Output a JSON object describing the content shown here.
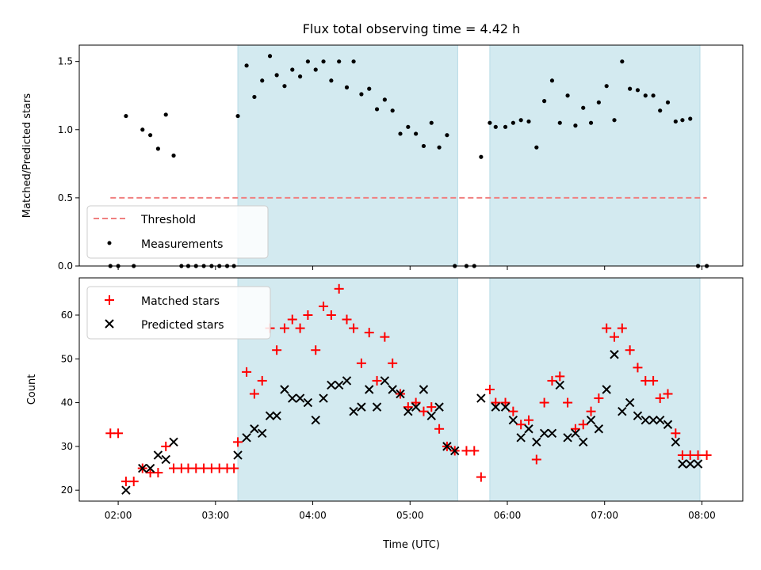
{
  "chart_data": {
    "type": "scatter",
    "title": "Flux total observing time = 4.42 h",
    "xlabel": "Time (UTC)",
    "x_ticks": [
      "02:00",
      "03:00",
      "04:00",
      "05:00",
      "06:00",
      "07:00",
      "08:00"
    ],
    "x_tick_values": [
      2,
      3,
      4,
      5,
      6,
      7,
      8
    ],
    "xlim": [
      1.6,
      8.42
    ],
    "shaded_intervals": [
      [
        3.23,
        5.49
      ],
      [
        5.82,
        7.98
      ]
    ],
    "colors": {
      "shade": "#d3eaf0",
      "threshold": "#f08080",
      "measurement": "#000000",
      "matched": "#ff0000",
      "predicted": "#000000"
    },
    "top_panel": {
      "ylabel": "Matched/Predicted stars",
      "ylim": [
        0,
        1.62
      ],
      "y_ticks": [
        "0.0",
        "0.5",
        "1.0",
        "1.5"
      ],
      "y_tick_values": [
        0,
        0.5,
        1.0,
        1.5
      ],
      "legend": {
        "position": "lower-left",
        "entries": [
          "Threshold",
          "Measurements"
        ]
      },
      "threshold": {
        "name": "Threshold",
        "value": 0.5,
        "x_range": [
          1.92,
          8.05
        ]
      },
      "measurements": {
        "name": "Measurements",
        "x": [
          1.92,
          2.0,
          2.08,
          2.16,
          2.25,
          2.33,
          2.41,
          2.49,
          2.57,
          2.65,
          2.72,
          2.8,
          2.88,
          2.96,
          3.04,
          3.12,
          3.19,
          3.23,
          3.32,
          3.4,
          3.48,
          3.56,
          3.63,
          3.71,
          3.79,
          3.87,
          3.95,
          4.03,
          4.11,
          4.19,
          4.27,
          4.35,
          4.42,
          4.5,
          4.58,
          4.66,
          4.74,
          4.82,
          4.9,
          4.98,
          5.06,
          5.14,
          5.22,
          5.3,
          5.38,
          5.46,
          5.58,
          5.66,
          5.73,
          5.82,
          5.88,
          5.98,
          6.06,
          6.14,
          6.22,
          6.3,
          6.38,
          6.46,
          6.54,
          6.62,
          6.7,
          6.78,
          6.86,
          6.94,
          7.02,
          7.1,
          7.18,
          7.26,
          7.34,
          7.42,
          7.5,
          7.57,
          7.65,
          7.73,
          7.8,
          7.88,
          7.96,
          8.05
        ],
        "y": [
          0.0,
          0.0,
          1.1,
          0.0,
          1.0,
          0.96,
          0.86,
          1.11,
          0.81,
          0.0,
          0.0,
          0.0,
          0.0,
          0.0,
          0.0,
          0.0,
          0.0,
          1.1,
          1.47,
          1.24,
          1.36,
          1.54,
          1.4,
          1.32,
          1.44,
          1.39,
          1.5,
          1.44,
          1.5,
          1.36,
          1.5,
          1.31,
          1.5,
          1.26,
          1.3,
          1.15,
          1.22,
          1.14,
          0.97,
          1.02,
          0.97,
          0.88,
          1.05,
          0.87,
          0.96,
          0.0,
          0.0,
          0.0,
          0.8,
          1.05,
          1.02,
          1.02,
          1.05,
          1.07,
          1.06,
          0.87,
          1.21,
          1.36,
          1.05,
          1.25,
          1.03,
          1.16,
          1.05,
          1.2,
          1.32,
          1.07,
          1.5,
          1.3,
          1.29,
          1.25,
          1.25,
          1.14,
          1.2,
          1.06,
          1.07,
          1.08,
          0.0,
          0.0
        ]
      }
    },
    "bottom_panel": {
      "ylabel": "Count",
      "ylim": [
        17.5,
        68.5
      ],
      "y_ticks": [
        "20",
        "30",
        "40",
        "50",
        "60"
      ],
      "y_tick_values": [
        20,
        30,
        40,
        50,
        60
      ],
      "legend": {
        "position": "upper-left",
        "entries": [
          "Matched stars",
          "Predicted stars"
        ]
      },
      "series": [
        {
          "name": "Matched stars",
          "marker": "+",
          "x": [
            1.92,
            2.0,
            2.08,
            2.16,
            2.25,
            2.33,
            2.41,
            2.49,
            2.57,
            2.65,
            2.72,
            2.8,
            2.88,
            2.96,
            3.04,
            3.12,
            3.19,
            3.23,
            3.32,
            3.4,
            3.48,
            3.56,
            3.63,
            3.71,
            3.79,
            3.87,
            3.95,
            4.03,
            4.11,
            4.19,
            4.27,
            4.35,
            4.42,
            4.5,
            4.58,
            4.66,
            4.74,
            4.82,
            4.9,
            4.98,
            5.06,
            5.14,
            5.22,
            5.3,
            5.38,
            5.46,
            5.58,
            5.66,
            5.73,
            5.82,
            5.88,
            5.98,
            6.06,
            6.14,
            6.22,
            6.3,
            6.38,
            6.46,
            6.54,
            6.62,
            6.7,
            6.78,
            6.86,
            6.94,
            7.02,
            7.1,
            7.18,
            7.26,
            7.34,
            7.42,
            7.5,
            7.57,
            7.65,
            7.73,
            7.8,
            7.88,
            7.96,
            8.05
          ],
          "y": [
            33,
            33,
            22,
            22,
            25,
            24,
            24,
            30,
            25,
            25,
            25,
            25,
            25,
            25,
            25,
            25,
            25,
            31,
            47,
            42,
            45,
            57,
            52,
            57,
            59,
            57,
            60,
            52,
            62,
            60,
            66,
            59,
            57,
            49,
            56,
            45,
            55,
            49,
            42,
            39,
            40,
            38,
            39,
            34,
            30,
            29,
            29,
            29,
            23,
            43,
            40,
            40,
            38,
            35,
            36,
            27,
            40,
            45,
            46,
            40,
            34,
            35,
            38,
            41,
            57,
            55,
            57,
            52,
            48,
            45,
            45,
            41,
            42,
            33,
            28,
            28,
            28,
            28
          ]
        },
        {
          "name": "Predicted stars",
          "marker": "x",
          "x": [
            2.08,
            2.25,
            2.33,
            2.41,
            2.49,
            2.57,
            3.23,
            3.32,
            3.4,
            3.48,
            3.56,
            3.63,
            3.71,
            3.79,
            3.87,
            3.95,
            4.03,
            4.11,
            4.19,
            4.27,
            4.35,
            4.42,
            4.5,
            4.58,
            4.66,
            4.74,
            4.82,
            4.9,
            4.98,
            5.06,
            5.14,
            5.22,
            5.3,
            5.38,
            5.46,
            5.73,
            5.88,
            5.98,
            6.06,
            6.14,
            6.22,
            6.3,
            6.38,
            6.46,
            6.54,
            6.62,
            6.7,
            6.78,
            6.86,
            6.94,
            7.02,
            7.1,
            7.18,
            7.26,
            7.34,
            7.42,
            7.5,
            7.57,
            7.65,
            7.73,
            7.8,
            7.88,
            7.96
          ],
          "y": [
            20,
            25,
            25,
            28,
            27,
            31,
            28,
            32,
            34,
            33,
            37,
            37,
            43,
            41,
            41,
            40,
            36,
            41,
            44,
            44,
            45,
            38,
            39,
            43,
            39,
            45,
            43,
            42,
            38,
            39,
            43,
            37,
            39,
            30,
            29,
            41,
            39,
            39,
            36,
            32,
            34,
            31,
            33,
            33,
            44,
            32,
            33,
            31,
            36,
            34,
            43,
            51,
            38,
            40,
            37,
            36,
            36,
            36,
            35,
            31,
            26,
            26,
            26
          ]
        }
      ]
    }
  }
}
